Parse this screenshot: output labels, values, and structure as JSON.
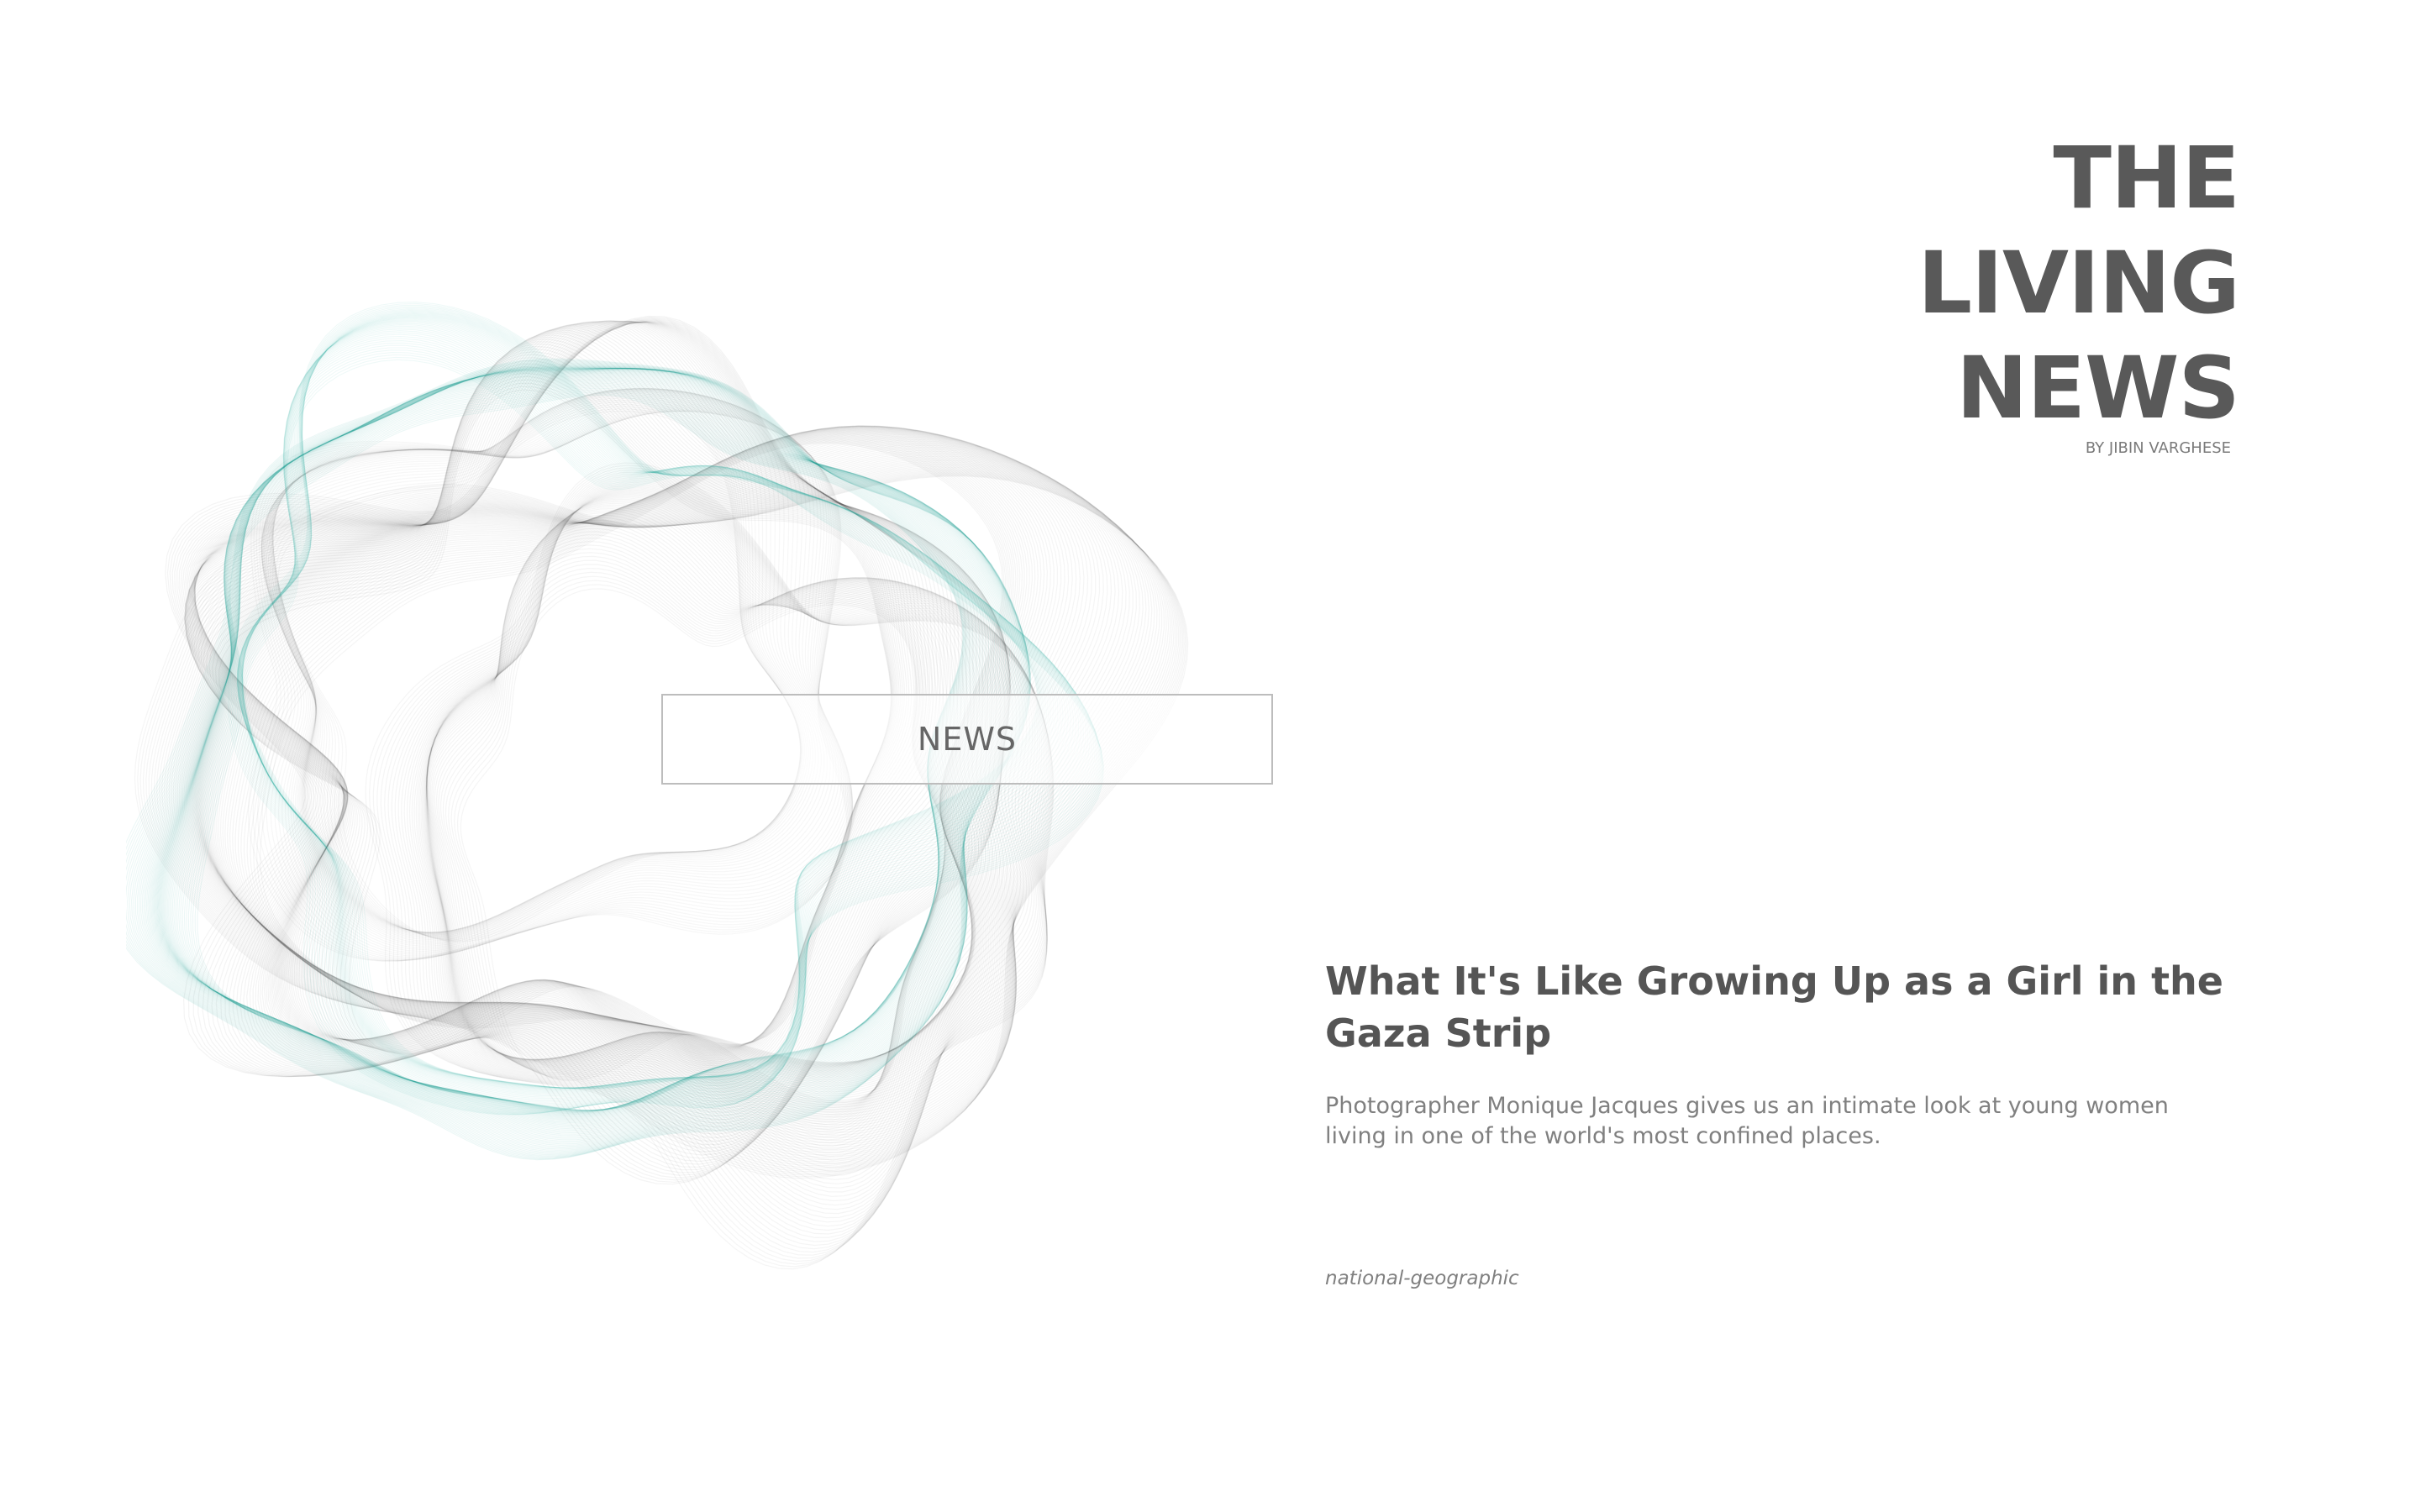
{
  "masthead": {
    "title_lines": [
      "THE",
      "LIVING",
      "NEWS"
    ],
    "byline": "BY JIBIN VARGHESE"
  },
  "category": {
    "label": "NEWS"
  },
  "article": {
    "headline": "What It's Like Growing Up as a Girl in the Gaza Strip",
    "summary": "Photographer Monique Jacques gives us an intimate look at young women living in one of the world's most confined places.",
    "source": "national-geographic"
  },
  "colors": {
    "background": "#ffffff",
    "text_dark": "#595959",
    "text_muted": "#808080",
    "accent_teal": "#1fa89a",
    "ribbon_gray": "#3c3c3c",
    "button_border": "#bdbdbd"
  },
  "icons": {
    "visualization": "wave-ring-visualization"
  }
}
